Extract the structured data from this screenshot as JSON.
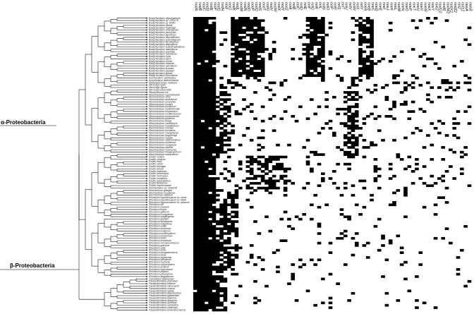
{
  "clade_labels": {
    "alpha": "α-Proteobacteria",
    "beta": "β-Proteobacteria"
  },
  "genes": [
    "nodA",
    "nodB",
    "nodC",
    "nodD",
    "nodE",
    "nodF",
    "nodG",
    "nodH",
    "nodI",
    "nodJ",
    "nodK",
    "nodL",
    "nodM",
    "nodN",
    "nodO",
    "nodP",
    "nodQ",
    "nodS",
    "nodT",
    "nodU",
    "nodV",
    "nodW",
    "nodX",
    "nodY",
    "nodZ",
    "nolA",
    "nolB",
    "nolC",
    "nolD",
    "nolE",
    "nolF",
    "nolG",
    "nolK",
    "nolL",
    "nolN",
    "nolO",
    "nolP",
    "nolR",
    "nolS",
    "nolT",
    "nolU",
    "nolV",
    "nolW",
    "nolX",
    "nolY",
    "noeA",
    "noeB",
    "noeC",
    "noeD",
    "noeE",
    "noeI",
    "noeJ",
    "noeK",
    "noeL",
    "noeM",
    "noeN",
    "noeO",
    "noeP",
    "noeT",
    "noeU",
    "noeV",
    "noeW",
    "noeX",
    "noeY",
    "noeZ",
    "nodO2",
    "nodR",
    "nodW2",
    "nodX2",
    "nodZ2",
    "nolZ",
    "nolY2",
    "nwsA",
    "nwsB"
  ],
  "taxa": [
    "Bradyrhizobium oligotrophicum",
    "Bradyrhizobium sp. ORS278",
    "Bradyrhizobium sp. BTAi1",
    "Bradyrhizobium elkanii",
    "Bradyrhizobium tropiciagri",
    "Bradyrhizobium embrapense",
    "Bradyrhizobium pachyrhizi",
    "Bradyrhizobium japonicum",
    "Bradyrhizobium diazoefficiens",
    "Bradyrhizobium yuanmingense",
    "Bradyrhizobium liaoningense",
    "Bradyrhizobium daqingense",
    "Bradyrhizobium huanghuaihaiense",
    "Bradyrhizobium ottawaense",
    "Bradyrhizobium arachidis",
    "Bradyrhizobium canariense",
    "Bradyrhizobium cytisi",
    "Bradyrhizobium lupini",
    "Bradyrhizobium icense",
    "Bradyrhizobium retamae",
    "Bradyrhizobium valentinum",
    "Bradyrhizobium jicamae",
    "Bradyrhizobium paxllaeri",
    "Bradyrhizobium lablabi",
    "Bradyrhizobium iriomotense",
    "Azorhizobium caulinodans",
    "Azorhizobium doebereinerae",
    "Methylobacterium nodulans",
    "Microvirga lupini",
    "Microvirga vignae",
    "Microvirga lotononidis",
    "Mesorhizobium loti",
    "Mesorhizobium opportunistum",
    "Mesorhizobium ciceri",
    "Mesorhizobium australicum",
    "Mesorhizobium amorphae",
    "Mesorhizobium huakuii",
    "Mesorhizobium plurifarium",
    "Mesorhizobium septentrionale",
    "Mesorhizobium temperatum",
    "Mesorhizobium mediterraneum",
    "Mesorhizobium tianshanense",
    "Mesorhizobium gobiense",
    "Mesorhizobium alhagi",
    "Mesorhizobium camelthorni",
    "Mesorhizobium metallidurans",
    "Mesorhizobium robiniae",
    "Mesorhizobium tarimense",
    "Mesorhizobium shangrilense",
    "Mesorhizobium qingshengii",
    "Mesorhizobium sangaii",
    "Mesorhizobium silamurunense",
    "Mesorhizobium muleiense",
    "Mesorhizobium caraganae",
    "Mesorhizobium albiziae",
    "Mesorhizobium chacoense",
    "Mesorhizobium thiogangeticum",
    "Mesorhizobium hawassense",
    "Ensifer meliloti",
    "Ensifer medicae",
    "Ensifer fredii",
    "Ensifer saheli",
    "Ensifer terangae",
    "Ensifer arboris",
    "Ensifer kostiensis",
    "Ensifer americanus",
    "Ensifer mexicanus",
    "Ensifer numidicus",
    "Ensifer garamanticus",
    "Ensifer adhaerens",
    "Ensifer kummerowiae",
    "Sinorhizobium sp. NGR234",
    "Neorhizobium galegae",
    "Neorhizobium huautlense",
    "Neorhizobium alkalisoli",
    "Rhizobium leguminosarum bv. viciae",
    "Rhizobium leguminosarum bv. trifolii",
    "Rhizobium leguminosarum bv. phaseoli",
    "Rhizobium etli",
    "Rhizobium phaseoli",
    "Rhizobium tropici",
    "Rhizobium gallicum",
    "Rhizobium mongolense",
    "Rhizobium yanglingense",
    "Rhizobium giardinii",
    "Rhizobium hainanense",
    "Rhizobium indigoferae",
    "Rhizobium sullae",
    "Rhizobium loessense",
    "Rhizobium lusitanum",
    "Rhizobium multihospitium",
    "Rhizobium miluonense",
    "Rhizobium freirei",
    "Rhizobium leucaenae",
    "Rhizobium mesoamericanum",
    "Rhizobium grahamii",
    "Rhizobium vallis",
    "Rhizobium lentis",
    "Rhizobium bangladeshense",
    "Rhizobium binae",
    "Rhizobium laguerreae",
    "Rhizobium anhuiense",
    "Rhizobium sophorae",
    "Rhizobium sophoriradicis",
    "Rhizobium acidisoli",
    "Rhizobium esperanzae",
    "Rhizobium altiplani",
    "Rhizobium paranaense",
    "Rhizobium aegyptiacum",
    "Cupriavidus taiwanensis",
    "Paraburkholderia phymatum",
    "Paraburkholderia tuberum",
    "Paraburkholderia mimosarum",
    "Paraburkholderia nodosa",
    "Paraburkholderia sabiae",
    "Paraburkholderia diazotrophica",
    "Paraburkholderia piptadeniae",
    "Paraburkholderia ribeironis",
    "Paraburkholderia dipogonis",
    "Paraburkholderia sprentiae",
    "Paraburkholderia symbiotica",
    "Paraburkholderia caribensis",
    "Paraburkholderia kirstenboschensis"
  ],
  "presence_seed": 20170613
}
